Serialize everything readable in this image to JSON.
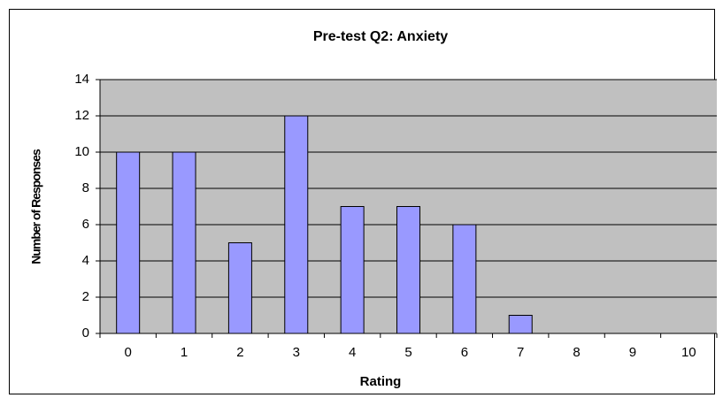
{
  "chart_data": {
    "type": "bar",
    "title": "Pre-test Q2: Anxiety",
    "x_label": "Rating",
    "y_label": "Number of Responses",
    "categories": [
      "0",
      "1",
      "2",
      "3",
      "4",
      "5",
      "6",
      "7",
      "8",
      "9",
      "10"
    ],
    "values": [
      10,
      10,
      5,
      12,
      7,
      7,
      6,
      1,
      0,
      0,
      0
    ],
    "color": "#9999ff",
    "plot_background": "#c0c0c0",
    "ylim": [
      0,
      14
    ],
    "yticks": [
      0,
      2,
      4,
      6,
      8,
      10,
      12,
      14
    ],
    "grid": true
  }
}
